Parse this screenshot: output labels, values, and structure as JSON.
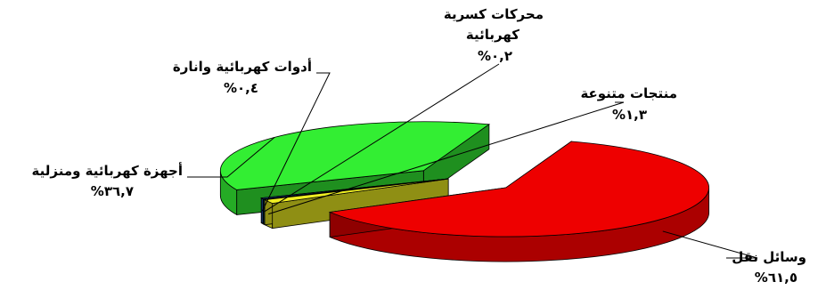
{
  "chart_data": {
    "type": "pie",
    "slices": [
      {
        "label": "وسائل نقل",
        "value_label": "%٦١,٥",
        "value": 61.5,
        "color": "#ee0000"
      },
      {
        "label": "أجهزة كهربائية ومنزلية",
        "value_label": "%٣٦,٧",
        "value": 36.7,
        "color": "#33ee33"
      },
      {
        "label": "أدوات كهربائية وانارة",
        "value_label": "%٠,٤",
        "value": 0.4,
        "color": "#1a4f9e"
      },
      {
        "label": "محركات كسرية كهربائية",
        "label_lines": [
          "محركات كسرية",
          "كهربائية"
        ],
        "value_label": "%٠,٢",
        "value": 0.2,
        "color": "#1a7f84"
      },
      {
        "label": "منتجات متنوعة",
        "value_label": "%١,٣",
        "value": 1.3,
        "color": "#eeee22"
      }
    ],
    "three_d": true,
    "exploded": true
  }
}
